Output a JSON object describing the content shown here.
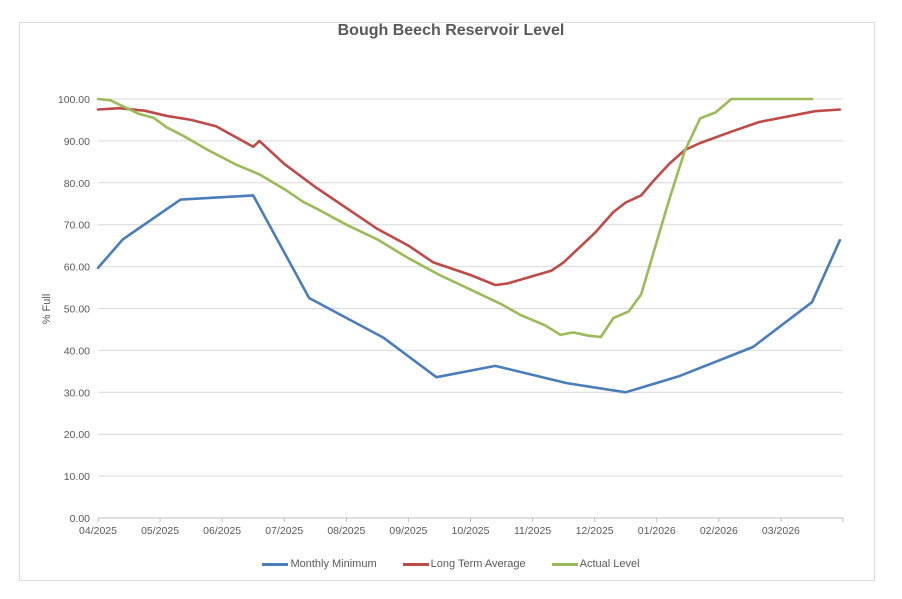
{
  "chart_data": {
    "type": "line",
    "title": "Bough Beech Reservoir Level",
    "xlabel": "",
    "ylabel": "% Full",
    "ylim": [
      0,
      100
    ],
    "yticks": [
      "0.00",
      "10.00",
      "20.00",
      "30.00",
      "40.00",
      "50.00",
      "60.00",
      "70.00",
      "80.00",
      "90.00",
      "100.00"
    ],
    "categories": [
      "04/2025",
      "05/2025",
      "06/2025",
      "07/2025",
      "08/2025",
      "09/2025",
      "10/2025",
      "11/2025",
      "12/2025",
      "01/2026",
      "02/2026",
      "03/2026"
    ],
    "grid": true,
    "legend_position": "bottom",
    "series": [
      {
        "name": "Monthly Minimum",
        "color": "#4a7ebb",
        "points": [
          [
            0,
            59.7
          ],
          [
            0.4,
            66.5
          ],
          [
            1.33,
            76.0
          ],
          [
            2.5,
            77.0
          ],
          [
            3.4,
            52.5
          ],
          [
            4.6,
            43.0
          ],
          [
            5.45,
            33.6
          ],
          [
            6.4,
            36.3
          ],
          [
            7.55,
            32.2
          ],
          [
            8.5,
            30.0
          ],
          [
            9.35,
            33.8
          ],
          [
            10.55,
            40.8
          ],
          [
            11.5,
            51.5
          ],
          [
            11.95,
            66.3
          ]
        ]
      },
      {
        "name": "Long Term Average",
        "color": "#be4b48",
        "points": [
          [
            0,
            97.5
          ],
          [
            0.35,
            97.8
          ],
          [
            0.75,
            97.2
          ],
          [
            1.1,
            96.0
          ],
          [
            1.5,
            95.0
          ],
          [
            1.9,
            93.5
          ],
          [
            2.6,
            90.0
          ],
          [
            2.5,
            88.6
          ],
          [
            3.0,
            84.5
          ],
          [
            3.5,
            79.0
          ],
          [
            4.0,
            74.0
          ],
          [
            4.5,
            69.0
          ],
          [
            5.0,
            65.0
          ],
          [
            5.4,
            61.0
          ],
          [
            6.0,
            58.0
          ],
          [
            6.4,
            55.6
          ],
          [
            6.6,
            56.0
          ],
          [
            7.3,
            59.0
          ],
          [
            7.5,
            61.0
          ],
          [
            8.0,
            68.0
          ],
          [
            8.3,
            73.0
          ],
          [
            8.5,
            75.3
          ],
          [
            8.75,
            77.0
          ],
          [
            8.95,
            80.5
          ],
          [
            9.2,
            84.5
          ],
          [
            9.45,
            87.8
          ],
          [
            9.7,
            89.5
          ],
          [
            10.2,
            92.2
          ],
          [
            10.65,
            94.5
          ],
          [
            11.55,
            97.1
          ],
          [
            11.95,
            97.5
          ]
        ]
      },
      {
        "name": "Actual Level",
        "color": "#9bbb59",
        "points": [
          [
            0,
            100.0
          ],
          [
            0.2,
            99.7
          ],
          [
            0.65,
            96.5
          ],
          [
            0.9,
            95.5
          ],
          [
            1.1,
            93.3
          ],
          [
            1.4,
            91.0
          ],
          [
            1.75,
            88.0
          ],
          [
            2.2,
            84.5
          ],
          [
            2.6,
            82.0
          ],
          [
            3.0,
            78.5
          ],
          [
            3.3,
            75.5
          ],
          [
            3.5,
            74.0
          ],
          [
            4.0,
            70.0
          ],
          [
            4.5,
            66.5
          ],
          [
            5.0,
            62.0
          ],
          [
            5.5,
            58.0
          ],
          [
            6.0,
            54.5
          ],
          [
            6.5,
            51.0
          ],
          [
            6.8,
            48.5
          ],
          [
            7.2,
            46.0
          ],
          [
            7.45,
            43.7
          ],
          [
            7.65,
            44.3
          ],
          [
            7.9,
            43.5
          ],
          [
            8.1,
            43.2
          ],
          [
            8.3,
            47.7
          ],
          [
            8.55,
            49.3
          ],
          [
            8.75,
            53.4
          ],
          [
            9.0,
            66.0
          ],
          [
            9.2,
            76.0
          ],
          [
            9.45,
            87.6
          ],
          [
            9.7,
            95.4
          ],
          [
            9.95,
            96.8
          ],
          [
            10.2,
            100.0
          ],
          [
            11.0,
            100.0
          ],
          [
            11.5,
            100.0
          ],
          [
            11.2,
            100.0
          ]
        ]
      }
    ]
  }
}
